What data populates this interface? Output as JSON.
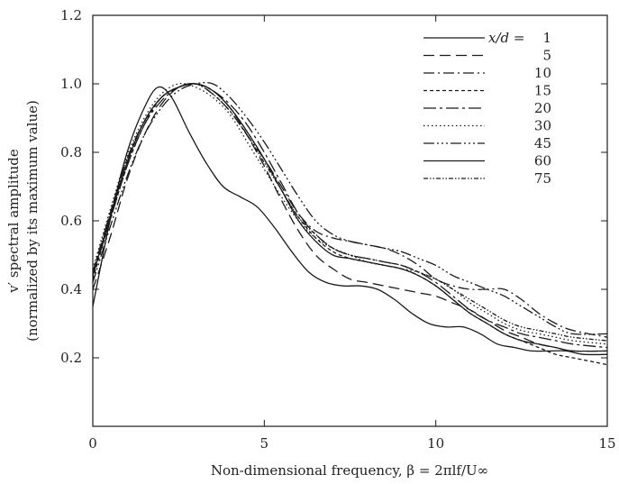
{
  "chart_data": {
    "type": "line",
    "xlabel": "Non-dimensional frequency, β = 2πlf/U∞",
    "ylabel_line1": "v′ spectral amplitude",
    "ylabel_line2": "(normalized by its maximum value)",
    "xlim": [
      0,
      15
    ],
    "ylim": [
      0,
      1.2
    ],
    "xticks": [
      0,
      5,
      10,
      15
    ],
    "yticks": [
      0.2,
      0.4,
      0.6,
      0.8,
      1.0,
      1.2
    ],
    "ytick_labels": [
      "0.2",
      "0.4",
      "0.6",
      "0.8",
      "1.0",
      "1.2"
    ],
    "grid": false,
    "legend_position": "top-right",
    "legend_header": "x/d =",
    "series": [
      {
        "name": "1",
        "dash": "",
        "x": [
          0,
          0.5,
          1,
          1.5,
          1.9,
          2.3,
          2.8,
          3.3,
          3.8,
          4.3,
          4.8,
          5.3,
          5.8,
          6.3,
          6.8,
          7.3,
          7.8,
          8.3,
          8.8,
          9.3,
          9.8,
          10.3,
          10.8,
          11.3,
          11.8,
          12.3,
          12.8,
          13.3,
          13.8,
          14.3,
          15
        ],
        "y": [
          0.35,
          0.6,
          0.8,
          0.93,
          0.99,
          0.96,
          0.86,
          0.77,
          0.7,
          0.67,
          0.64,
          0.58,
          0.51,
          0.45,
          0.42,
          0.41,
          0.41,
          0.4,
          0.37,
          0.33,
          0.3,
          0.29,
          0.29,
          0.27,
          0.24,
          0.23,
          0.22,
          0.22,
          0.22,
          0.21,
          0.21
        ]
      },
      {
        "name": "5",
        "dash": "12,6",
        "x": [
          0,
          0.5,
          1,
          1.5,
          2,
          2.5,
          3,
          3.5,
          4,
          4.5,
          5,
          5.5,
          6,
          6.5,
          7,
          7.5,
          8,
          8.5,
          9,
          9.5,
          10,
          10.5,
          11,
          11.5,
          12,
          12.5,
          13,
          13.5,
          14,
          15
        ],
        "y": [
          0.4,
          0.55,
          0.72,
          0.85,
          0.94,
          0.99,
          1.0,
          0.98,
          0.93,
          0.85,
          0.76,
          0.66,
          0.57,
          0.5,
          0.46,
          0.43,
          0.42,
          0.41,
          0.4,
          0.39,
          0.38,
          0.36,
          0.34,
          0.31,
          0.28,
          0.26,
          0.24,
          0.23,
          0.22,
          0.22
        ]
      },
      {
        "name": "10",
        "dash": "12,4,2,4",
        "x": [
          0,
          0.5,
          1,
          1.5,
          2,
          2.5,
          3,
          3.5,
          4,
          4.5,
          5,
          5.5,
          6,
          6.5,
          7,
          7.5,
          8,
          8.5,
          9,
          9.5,
          10,
          10.5,
          11,
          11.5,
          12,
          12.5,
          13,
          13.5,
          14,
          15
        ],
        "y": [
          0.45,
          0.62,
          0.78,
          0.89,
          0.96,
          0.99,
          1.0,
          0.97,
          0.92,
          0.85,
          0.78,
          0.7,
          0.62,
          0.57,
          0.55,
          0.54,
          0.53,
          0.52,
          0.5,
          0.47,
          0.43,
          0.41,
          0.4,
          0.4,
          0.4,
          0.37,
          0.33,
          0.3,
          0.28,
          0.26
        ]
      },
      {
        "name": "15",
        "dash": "4,3",
        "x": [
          0,
          0.5,
          1,
          1.5,
          2,
          2.5,
          3,
          3.5,
          4,
          4.5,
          5,
          5.5,
          6,
          6.5,
          7,
          7.5,
          8,
          8.5,
          9,
          9.5,
          10,
          10.5,
          11,
          11.5,
          12,
          12.5,
          13,
          13.5,
          14,
          15
        ],
        "y": [
          0.43,
          0.6,
          0.76,
          0.88,
          0.96,
          0.99,
          1.0,
          0.98,
          0.93,
          0.86,
          0.78,
          0.69,
          0.61,
          0.55,
          0.51,
          0.49,
          0.48,
          0.47,
          0.46,
          0.44,
          0.41,
          0.37,
          0.33,
          0.3,
          0.27,
          0.25,
          0.23,
          0.21,
          0.2,
          0.18
        ]
      },
      {
        "name": "20",
        "dash": "14,4,3,4",
        "x": [
          0,
          0.5,
          1,
          1.5,
          2,
          2.5,
          3,
          3.5,
          4,
          4.5,
          5,
          5.5,
          6,
          6.5,
          7,
          7.5,
          8,
          8.5,
          9,
          9.5,
          10,
          10.5,
          11,
          11.5,
          12,
          12.5,
          13,
          13.5,
          14,
          15
        ],
        "y": [
          0.44,
          0.6,
          0.76,
          0.88,
          0.95,
          0.99,
          1.0,
          0.98,
          0.94,
          0.88,
          0.8,
          0.71,
          0.62,
          0.56,
          0.52,
          0.5,
          0.49,
          0.48,
          0.47,
          0.45,
          0.42,
          0.38,
          0.34,
          0.31,
          0.29,
          0.27,
          0.26,
          0.25,
          0.24,
          0.23
        ]
      },
      {
        "name": "30",
        "dash": "1.5,3",
        "x": [
          0,
          0.5,
          1,
          1.5,
          2,
          2.5,
          3,
          3.5,
          4,
          4.5,
          5,
          5.5,
          6,
          6.5,
          7,
          7.5,
          8,
          8.5,
          9,
          9.5,
          10,
          10.5,
          11,
          11.5,
          12,
          12.5,
          13,
          13.5,
          14,
          15
        ],
        "y": [
          0.46,
          0.63,
          0.79,
          0.9,
          0.97,
          1.0,
          0.99,
          0.96,
          0.91,
          0.83,
          0.75,
          0.67,
          0.6,
          0.55,
          0.52,
          0.5,
          0.48,
          0.47,
          0.46,
          0.45,
          0.43,
          0.4,
          0.36,
          0.33,
          0.3,
          0.28,
          0.27,
          0.26,
          0.25,
          0.24
        ]
      },
      {
        "name": "45",
        "dash": "12,3,2,3,2,3,2,3",
        "x": [
          0,
          0.5,
          1,
          1.5,
          2,
          2.5,
          3,
          3.5,
          4,
          4.5,
          5,
          5.5,
          6,
          6.5,
          7,
          7.5,
          8,
          8.5,
          9,
          9.5,
          10,
          10.5,
          11,
          11.5,
          12,
          12.5,
          13,
          13.5,
          14,
          15
        ],
        "y": [
          0.42,
          0.58,
          0.73,
          0.85,
          0.93,
          0.98,
          1.0,
          1.0,
          0.96,
          0.9,
          0.83,
          0.75,
          0.67,
          0.6,
          0.56,
          0.54,
          0.53,
          0.52,
          0.51,
          0.49,
          0.47,
          0.44,
          0.42,
          0.4,
          0.38,
          0.35,
          0.32,
          0.29,
          0.27,
          0.27
        ]
      },
      {
        "name": "60",
        "dash": "",
        "x": [
          0,
          0.5,
          1,
          1.5,
          2,
          2.5,
          3,
          3.5,
          4,
          4.5,
          5,
          5.5,
          6,
          6.5,
          7,
          7.5,
          8,
          8.5,
          9,
          9.5,
          10,
          10.5,
          11,
          11.5,
          12,
          12.5,
          13,
          13.5,
          14,
          15
        ],
        "y": [
          0.44,
          0.61,
          0.77,
          0.89,
          0.96,
          0.99,
          1.0,
          0.98,
          0.93,
          0.86,
          0.78,
          0.69,
          0.6,
          0.54,
          0.5,
          0.49,
          0.48,
          0.47,
          0.46,
          0.44,
          0.41,
          0.37,
          0.33,
          0.3,
          0.27,
          0.25,
          0.24,
          0.23,
          0.22,
          0.22
        ]
      },
      {
        "name": "75",
        "dash": "5,2,1.5,2,1.5,2",
        "x": [
          0,
          0.5,
          1,
          1.5,
          2,
          2.5,
          3,
          3.5,
          4,
          4.5,
          5,
          5.5,
          6,
          6.5,
          7,
          7.5,
          8,
          8.5,
          9,
          9.5,
          10,
          10.5,
          11,
          11.5,
          12,
          12.5,
          13,
          13.5,
          14,
          15
        ],
        "y": [
          0.45,
          0.62,
          0.78,
          0.89,
          0.96,
          0.99,
          1.0,
          0.97,
          0.92,
          0.85,
          0.77,
          0.69,
          0.61,
          0.56,
          0.52,
          0.5,
          0.49,
          0.48,
          0.47,
          0.45,
          0.43,
          0.4,
          0.37,
          0.34,
          0.31,
          0.29,
          0.28,
          0.27,
          0.26,
          0.25
        ]
      }
    ]
  }
}
